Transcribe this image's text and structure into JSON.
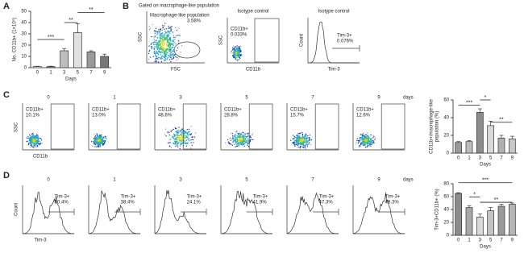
{
  "panel_labels": [
    "A",
    "B",
    "C",
    "D"
  ],
  "chart_data": [
    {
      "type": "bar",
      "ylabel": [
        "No. CD11b+ (1×10⁵)"
      ],
      "xlabel": "Days",
      "categories": [
        "0",
        "1",
        "3",
        "5",
        "7",
        "9"
      ],
      "values": [
        1,
        1,
        15,
        31,
        14,
        10
      ],
      "errors": [
        0.3,
        0.3,
        2,
        8,
        1,
        2
      ],
      "colors": [
        "#ffffff",
        "#8c8c8c",
        "#bdbdbd",
        "#e0e0e0",
        "#9a9a9a",
        "#777777"
      ],
      "ylim": [
        0,
        50
      ],
      "yticks": [
        0,
        10,
        20,
        30,
        40,
        50
      ],
      "annotations": [
        "***",
        "**",
        "**"
      ]
    },
    {
      "type": "bar",
      "ylabel": [
        "CD11b+/macrophage-like",
        "population (%)"
      ],
      "xlabel": "Days",
      "categories": [
        "0",
        "1",
        "3",
        "5",
        "7",
        "9"
      ],
      "values": [
        12,
        13,
        46,
        31,
        17,
        16
      ],
      "errors": [
        1,
        1,
        4,
        5,
        3,
        3
      ],
      "colors": [
        "#9a9a9a",
        "#bdbdbd",
        "#8c8c8c",
        "#d9d9d9",
        "#b0b0b0",
        "#c8c8c8"
      ],
      "ylim": [
        0,
        60
      ],
      "yticks": [
        0,
        20,
        40,
        60
      ],
      "annotations": [
        "***",
        "*",
        "**"
      ]
    },
    {
      "type": "bar",
      "ylabel": [
        "Tim-3+CD11b+ (%)"
      ],
      "xlabel": "Days",
      "categories": [
        "0",
        "1",
        "3",
        "5",
        "7",
        "9"
      ],
      "values": [
        65,
        43,
        28,
        38,
        45,
        48
      ],
      "errors": [
        1,
        3,
        5,
        5,
        3,
        2
      ],
      "colors": [
        "#8c8c8c",
        "#a8a8a8",
        "#d9d9d9",
        "#c4c4c4",
        "#9a9a9a",
        "#b5b5b5"
      ],
      "ylim": [
        0,
        80
      ],
      "yticks": [
        0,
        20,
        40,
        60,
        80
      ],
      "annotations": [
        "***",
        "*",
        "**"
      ]
    }
  ],
  "panel_b": {
    "gate_title": "Gated on macrophage-like population",
    "gate_name": "Macrophage-like population",
    "gate_pct": "3.58%",
    "y_axis": "SSC",
    "x_axis": "FSC",
    "iso1_title": "Isotype control",
    "iso1_gate": "CD11b+",
    "iso1_pct": "0.033%",
    "iso1_y": "SSC",
    "iso1_x": "CD11b",
    "iso2_title": "Isotype control",
    "iso2_gate": "Tim-3+",
    "iso2_pct": "0.076%",
    "iso2_y": "Count",
    "iso2_x": "Tim-3"
  },
  "panel_c": {
    "days": [
      "0",
      "1",
      "3",
      "5",
      "7",
      "9"
    ],
    "days_label": "days",
    "gate": "CD11b+",
    "pcts": [
      "10.1%",
      "13.0%",
      "48.6%",
      "28.8%",
      "15.7%",
      "12.6%"
    ],
    "y_axis": "SSC",
    "x_axis": "CD11b"
  },
  "panel_d": {
    "days": [
      "0",
      "1",
      "3",
      "5",
      "7",
      "9"
    ],
    "days_label": "days",
    "gate": "Tim-3+",
    "pcts": [
      "50.4%",
      "38.4%",
      "24.1%",
      "41.9%",
      "47.3%",
      "48.3%"
    ],
    "y_axis": "Count",
    "x_axis": "Tim-3"
  }
}
